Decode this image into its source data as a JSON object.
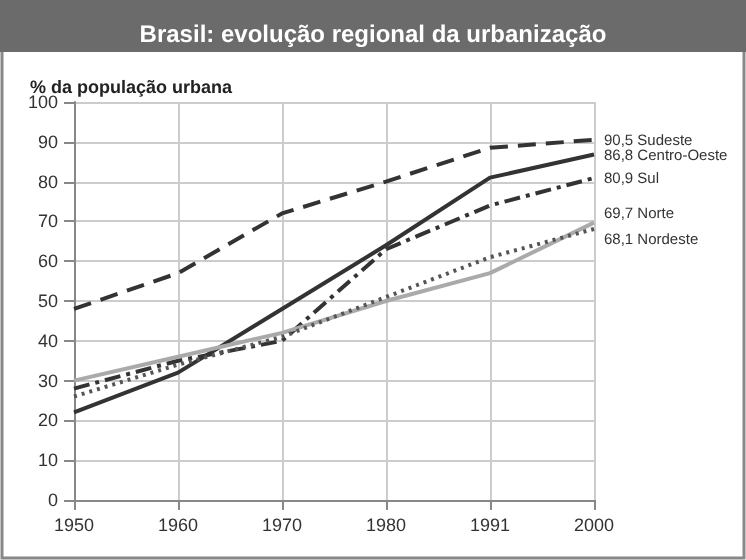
{
  "chart_data": {
    "type": "line",
    "title": "Brasil: evolução regional da urbanização",
    "ylabel": "% da população urbana",
    "categories": [
      "1950",
      "1960",
      "1970",
      "1980",
      "1991",
      "2000"
    ],
    "series": [
      {
        "name": "Sudeste",
        "color": "#333333",
        "line_style": "dashed",
        "values": [
          48,
          57,
          72,
          80,
          88.5,
          90.5
        ],
        "value_labels": [
          null,
          null,
          null,
          null,
          null,
          "90,5"
        ]
      },
      {
        "name": "Centro-Oeste",
        "color": "#333333",
        "line_style": "solid",
        "values": [
          22,
          32,
          48,
          64,
          81,
          86.8
        ],
        "value_labels": [
          null,
          null,
          null,
          null,
          null,
          "86,8"
        ]
      },
      {
        "name": "Sul",
        "color": "#333333",
        "line_style": "dashdot",
        "values": [
          28,
          35,
          40,
          63,
          74,
          80.9
        ],
        "value_labels": [
          null,
          null,
          null,
          null,
          null,
          "80,9"
        ]
      },
      {
        "name": "Norte",
        "color": "#aaaaaa",
        "line_style": "solid",
        "values": [
          30,
          36,
          42,
          50,
          57,
          69.7
        ],
        "value_labels": [
          null,
          null,
          null,
          null,
          null,
          "69,7"
        ]
      },
      {
        "name": "Nordeste",
        "color": "#555555",
        "line_style": "dotted",
        "values": [
          26,
          34,
          41,
          51,
          61,
          68.1
        ],
        "value_labels": [
          null,
          null,
          null,
          null,
          null,
          "68,1"
        ]
      }
    ],
    "ylim": [
      0,
      100
    ],
    "yticks": [
      0,
      10,
      20,
      30,
      40,
      50,
      60,
      70,
      80,
      90,
      100
    ],
    "grid": true,
    "marker": "none",
    "legend": false
  }
}
